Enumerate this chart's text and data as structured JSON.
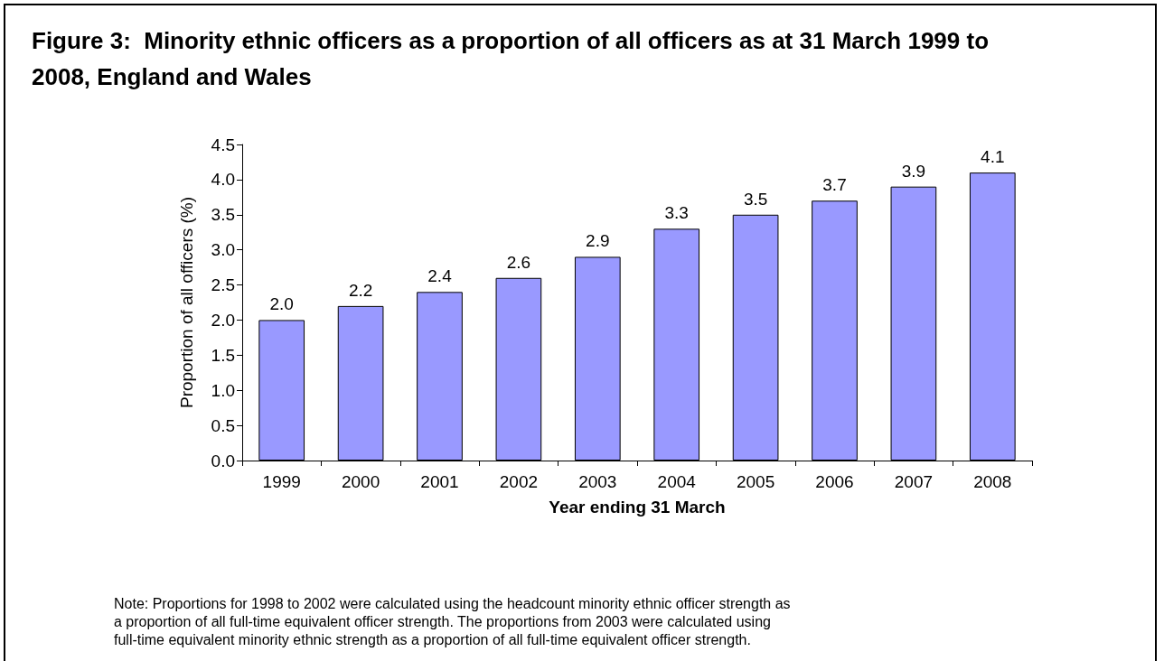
{
  "chart_data": {
    "type": "bar",
    "title": "Figure 3:  Minority ethnic officers as a proportion of all officers as at 31 March 1999 to 2008, England and Wales",
    "xlabel": "Year ending 31 March",
    "ylabel": "Proportion of all officers (%)",
    "categories": [
      "1999",
      "2000",
      "2001",
      "2002",
      "2003",
      "2004",
      "2005",
      "2006",
      "2007",
      "2008"
    ],
    "values": [
      2.0,
      2.2,
      2.4,
      2.6,
      2.9,
      3.3,
      3.5,
      3.7,
      3.9,
      4.1
    ],
    "value_labels": [
      "2.0",
      "2.2",
      "2.4",
      "2.6",
      "2.9",
      "3.3",
      "3.5",
      "3.7",
      "3.9",
      "4.1"
    ],
    "color": "#9999ff",
    "ylim": [
      0,
      4.5
    ],
    "yticks": [
      {
        "value": 0,
        "label": "0.0"
      },
      {
        "value": 0.5,
        "label": "0.5"
      },
      {
        "value": 1,
        "label": "1.0"
      },
      {
        "value": 1.5,
        "label": "1.5"
      },
      {
        "value": 2,
        "label": "2.0"
      },
      {
        "value": 2.5,
        "label": "2.5"
      },
      {
        "value": 3,
        "label": "3.0"
      },
      {
        "value": 3.5,
        "label": "3.5"
      },
      {
        "value": 4,
        "label": "4.0"
      },
      {
        "value": 4.5,
        "label": "4.5"
      }
    ],
    "grid": false,
    "annotations": [
      "Note: Proportions for 1998 to 2002 were calculated using the headcount minority ethnic officer strength as a proportion of all full-time equivalent officer strength. The proportions from 2003 were calculated using full-time equivalent minority ethnic strength as a proportion of all full-time equivalent officer strength."
    ]
  }
}
